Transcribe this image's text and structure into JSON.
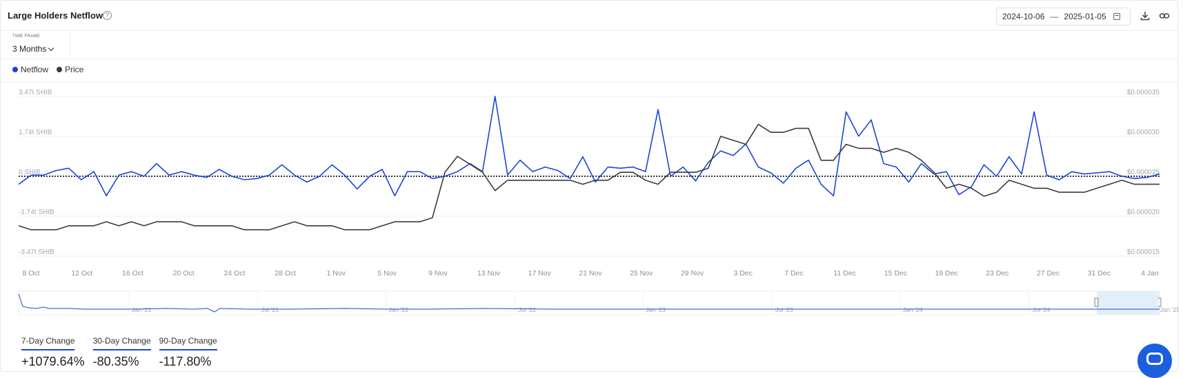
{
  "header": {
    "title": "Large Holders Netflow",
    "help_icon": "question-circle-icon",
    "date_from": "2024-10-06",
    "date_sep": "—",
    "date_to": "2025-01-05",
    "calendar_icon": "calendar-icon",
    "download_icon": "download-icon",
    "link_icon": "link-icon"
  },
  "timeframe": {
    "label": "TIME FRAME",
    "value": "3 Months"
  },
  "legend": [
    {
      "label": "Netflow",
      "color": "#1b45d6"
    },
    {
      "label": "Price",
      "color": "#3a3a3a"
    }
  ],
  "stats": [
    {
      "label": "7-Day Change",
      "value": "+1079.64%"
    },
    {
      "label": "30-Day Change",
      "value": "-80.35%"
    },
    {
      "label": "90-Day Change",
      "value": "-117.80%"
    }
  ],
  "chat_icon": "chat-icon",
  "chart_data": {
    "type": "line",
    "title": "Large Holders Netflow",
    "x_tick_labels": [
      "8 Oct",
      "12 Oct",
      "16 Oct",
      "20 Oct",
      "24 Oct",
      "28 Oct",
      "1 Nov",
      "5 Nov",
      "9 Nov",
      "13 Nov",
      "17 Nov",
      "21 Nov",
      "25 Nov",
      "29 Nov",
      "3 Dec",
      "7 Dec",
      "11 Dec",
      "15 Dec",
      "19 Dec",
      "23 Dec",
      "27 Dec",
      "31 Dec",
      "4 Jan"
    ],
    "y_left_ticks": [
      "3.47t SHIB",
      "1.74t SHIB",
      "0 SHIB",
      "-1.74t SHIB",
      "-3.47t SHIB"
    ],
    "y_left_range": [
      -3.47,
      3.47
    ],
    "y_left_unit": "t SHIB",
    "y_right_ticks": [
      "$0.000035",
      "$0.000030",
      "$0.000025",
      "$0.000020",
      "$0.000015"
    ],
    "y_right_range": [
      1.5e-05,
      3.5e-05
    ],
    "grid": true,
    "legend_position": "top-left",
    "series": [
      {
        "name": "Netflow",
        "axis": "left",
        "color": "#1b45d6",
        "values": [
          -0.35,
          0.05,
          0.05,
          0.25,
          0.35,
          -0.15,
          0.2,
          -0.85,
          0.05,
          0.2,
          0,
          0.55,
          0.05,
          0.2,
          0.05,
          -0.05,
          0.3,
          0,
          -0.15,
          -0.1,
          0.05,
          0.5,
          0.05,
          -0.25,
          0,
          0.5,
          0.05,
          -0.55,
          0,
          0.3,
          -0.85,
          0.2,
          0.2,
          -0.1,
          0,
          0.2,
          0.55,
          0.2,
          3.47,
          0.05,
          0.7,
          0.2,
          0.4,
          0.25,
          -0.1,
          0.85,
          -0.25,
          0.4,
          0.35,
          0.4,
          0.2,
          2.9,
          0,
          0.4,
          -0.2,
          0.6,
          1.1,
          0.9,
          1.4,
          0.4,
          0.15,
          -0.3,
          0.35,
          0.7,
          -0.35,
          -0.85,
          2.8,
          1.74,
          2.45,
          0.55,
          0.4,
          -0.25,
          0.55,
          0.1,
          0.2,
          -0.8,
          -0.45,
          0.5,
          0,
          0.85,
          0.1,
          2.8,
          0.05,
          -0.15,
          0.2,
          0.1,
          0.15,
          0.2,
          0,
          -0.1,
          -0.05,
          0.1
        ]
      },
      {
        "name": "Price",
        "axis": "right",
        "color": "#3a3a3a",
        "values": [
          1.88e-05,
          1.83e-05,
          1.83e-05,
          1.83e-05,
          1.88e-05,
          1.88e-05,
          1.88e-05,
          1.93e-05,
          1.88e-05,
          1.93e-05,
          1.88e-05,
          1.93e-05,
          1.93e-05,
          1.93e-05,
          1.88e-05,
          1.88e-05,
          1.88e-05,
          1.88e-05,
          1.83e-05,
          1.83e-05,
          1.83e-05,
          1.88e-05,
          1.93e-05,
          1.88e-05,
          1.88e-05,
          1.88e-05,
          1.83e-05,
          1.83e-05,
          1.83e-05,
          1.88e-05,
          1.93e-05,
          1.93e-05,
          1.93e-05,
          1.98e-05,
          2.55e-05,
          2.75e-05,
          2.65e-05,
          2.55e-05,
          2.32e-05,
          2.45e-05,
          2.45e-05,
          2.45e-05,
          2.45e-05,
          2.45e-05,
          2.45e-05,
          2.4e-05,
          2.45e-05,
          2.45e-05,
          2.55e-05,
          2.55e-05,
          2.45e-05,
          2.4e-05,
          2.55e-05,
          2.55e-05,
          2.55e-05,
          2.6e-05,
          3e-05,
          2.95e-05,
          2.9e-05,
          3.15e-05,
          3.05e-05,
          3.05e-05,
          3.1e-05,
          3.1e-05,
          2.7e-05,
          2.7e-05,
          2.9e-05,
          2.85e-05,
          2.85e-05,
          2.8e-05,
          2.85e-05,
          2.8e-05,
          2.7e-05,
          2.55e-05,
          2.35e-05,
          2.4e-05,
          2.35e-05,
          2.25e-05,
          2.3e-05,
          2.45e-05,
          2.4e-05,
          2.35e-05,
          2.35e-05,
          2.3e-05,
          2.3e-05,
          2.3e-05,
          2.35e-05,
          2.4e-05,
          2.45e-05,
          2.4e-05,
          2.4e-05,
          2.4e-05
        ]
      }
    ]
  },
  "navigator": {
    "tick_labels": [
      "Jan '21",
      "Jul '21",
      "Jan '22",
      "Jul '22",
      "Jan '23",
      "Jul '23",
      "Jan '24",
      "Jul '24",
      "Jan '25"
    ]
  }
}
